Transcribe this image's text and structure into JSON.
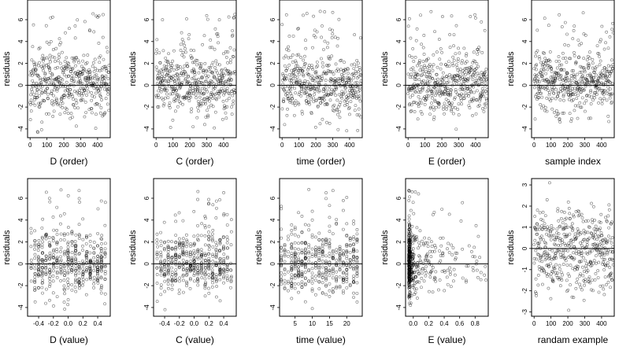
{
  "chart_data": [
    {
      "type": "scatter",
      "xlabel": "D (order)",
      "ylabel": "residuals",
      "xticks": [
        "0",
        "100",
        "200",
        "300",
        "400"
      ],
      "yticks": [
        "-4",
        "-2",
        "0",
        "2",
        "4",
        "6"
      ],
      "xlim": [
        -15,
        475
      ],
      "ylim": [
        -4.8,
        7.8
      ],
      "hline": 0,
      "grid": false,
      "legend": "none",
      "x_kind": "order",
      "n": 470,
      "seed": 11
    },
    {
      "type": "scatter",
      "xlabel": "C (order)",
      "ylabel": "residuals",
      "xticks": [
        "0",
        "100",
        "200",
        "300",
        "400"
      ],
      "yticks": [
        "-4",
        "-2",
        "0",
        "2",
        "4",
        "6"
      ],
      "xlim": [
        -15,
        475
      ],
      "ylim": [
        -4.8,
        7.8
      ],
      "hline": 0,
      "grid": false,
      "legend": "none",
      "x_kind": "order",
      "n": 470,
      "seed": 23
    },
    {
      "type": "scatter",
      "xlabel": "time (order)",
      "ylabel": "residuals",
      "xticks": [
        "0",
        "100",
        "200",
        "300",
        "400"
      ],
      "yticks": [
        "-4",
        "-2",
        "0",
        "2",
        "4",
        "6"
      ],
      "xlim": [
        -15,
        475
      ],
      "ylim": [
        -4.8,
        7.8
      ],
      "hline": 0,
      "grid": false,
      "legend": "none",
      "x_kind": "order",
      "n": 470,
      "seed": 37
    },
    {
      "type": "scatter",
      "xlabel": "E (order)",
      "ylabel": "residuals",
      "xticks": [
        "0",
        "100",
        "200",
        "300",
        "400"
      ],
      "yticks": [
        "-4",
        "-2",
        "0",
        "2",
        "4",
        "6"
      ],
      "xlim": [
        -15,
        475
      ],
      "ylim": [
        -4.8,
        7.8
      ],
      "hline": 0,
      "grid": false,
      "legend": "none",
      "x_kind": "order",
      "n": 470,
      "seed": 41
    },
    {
      "type": "scatter",
      "xlabel": "sample index",
      "ylabel": "residuals",
      "xticks": [
        "0",
        "100",
        "200",
        "300",
        "400"
      ],
      "yticks": [
        "-4",
        "-2",
        "0",
        "2",
        "4",
        "6"
      ],
      "xlim": [
        -15,
        475
      ],
      "ylim": [
        -4.8,
        7.8
      ],
      "hline": 0,
      "grid": false,
      "legend": "none",
      "x_kind": "order",
      "n": 470,
      "seed": 53
    },
    {
      "type": "scatter",
      "xlabel": "D (value)",
      "ylabel": "residuals",
      "xticks": [
        "-0.4",
        "-0.2",
        "0.0",
        "0.2",
        "0.4"
      ],
      "yticks": [
        "-4",
        "-2",
        "0",
        "2",
        "4",
        "6"
      ],
      "xlim": [
        -0.55,
        0.57
      ],
      "ylim": [
        -4.8,
        7.8
      ],
      "hline": 0,
      "grid": false,
      "legend": "none",
      "x_kind": "D",
      "n": 470,
      "seed": 61
    },
    {
      "type": "scatter",
      "xlabel": "C (value)",
      "ylabel": "residuals",
      "xticks": [
        "-0.4",
        "-0.2",
        "0.0",
        "0.2",
        "0.4"
      ],
      "yticks": [
        "-4",
        "-2",
        "0",
        "2",
        "4",
        "6"
      ],
      "xlim": [
        -0.55,
        0.57
      ],
      "ylim": [
        -4.8,
        7.8
      ],
      "hline": 0,
      "grid": false,
      "legend": "none",
      "x_kind": "C",
      "n": 470,
      "seed": 71
    },
    {
      "type": "scatter",
      "xlabel": "time (value)",
      "ylabel": "residuals",
      "xticks": [
        "5",
        "10",
        "15",
        "20"
      ],
      "yticks": [
        "-4",
        "-2",
        "0",
        "2",
        "4",
        "6"
      ],
      "xlim": [
        0.5,
        24.5
      ],
      "ylim": [
        -4.8,
        7.8
      ],
      "hline": 0,
      "grid": false,
      "legend": "none",
      "x_kind": "time",
      "n": 470,
      "seed": 83
    },
    {
      "type": "scatter",
      "xlabel": "E (value)",
      "ylabel": "residuals",
      "xticks": [
        "0.0",
        "0.2",
        "0.4",
        "0.6",
        "0.8"
      ],
      "yticks": [
        "-4",
        "-2",
        "0",
        "2",
        "4",
        "6"
      ],
      "xlim": [
        -0.1,
        0.97
      ],
      "ylim": [
        -4.8,
        7.8
      ],
      "hline": 0,
      "grid": false,
      "legend": "none",
      "x_kind": "E",
      "n": 470,
      "seed": 97
    },
    {
      "type": "scatter",
      "xlabel": "randam example",
      "ylabel": "residuals",
      "xticks": [
        "0",
        "100",
        "200",
        "300",
        "400"
      ],
      "yticks": [
        "-3",
        "-2",
        "-1",
        "0",
        "1",
        "2",
        "3"
      ],
      "xlim": [
        -15,
        475
      ],
      "ylim": [
        -3.2,
        3.3
      ],
      "hline": 0,
      "grid": false,
      "legend": "none",
      "x_kind": "order",
      "n": 470,
      "seed": 101
    }
  ]
}
